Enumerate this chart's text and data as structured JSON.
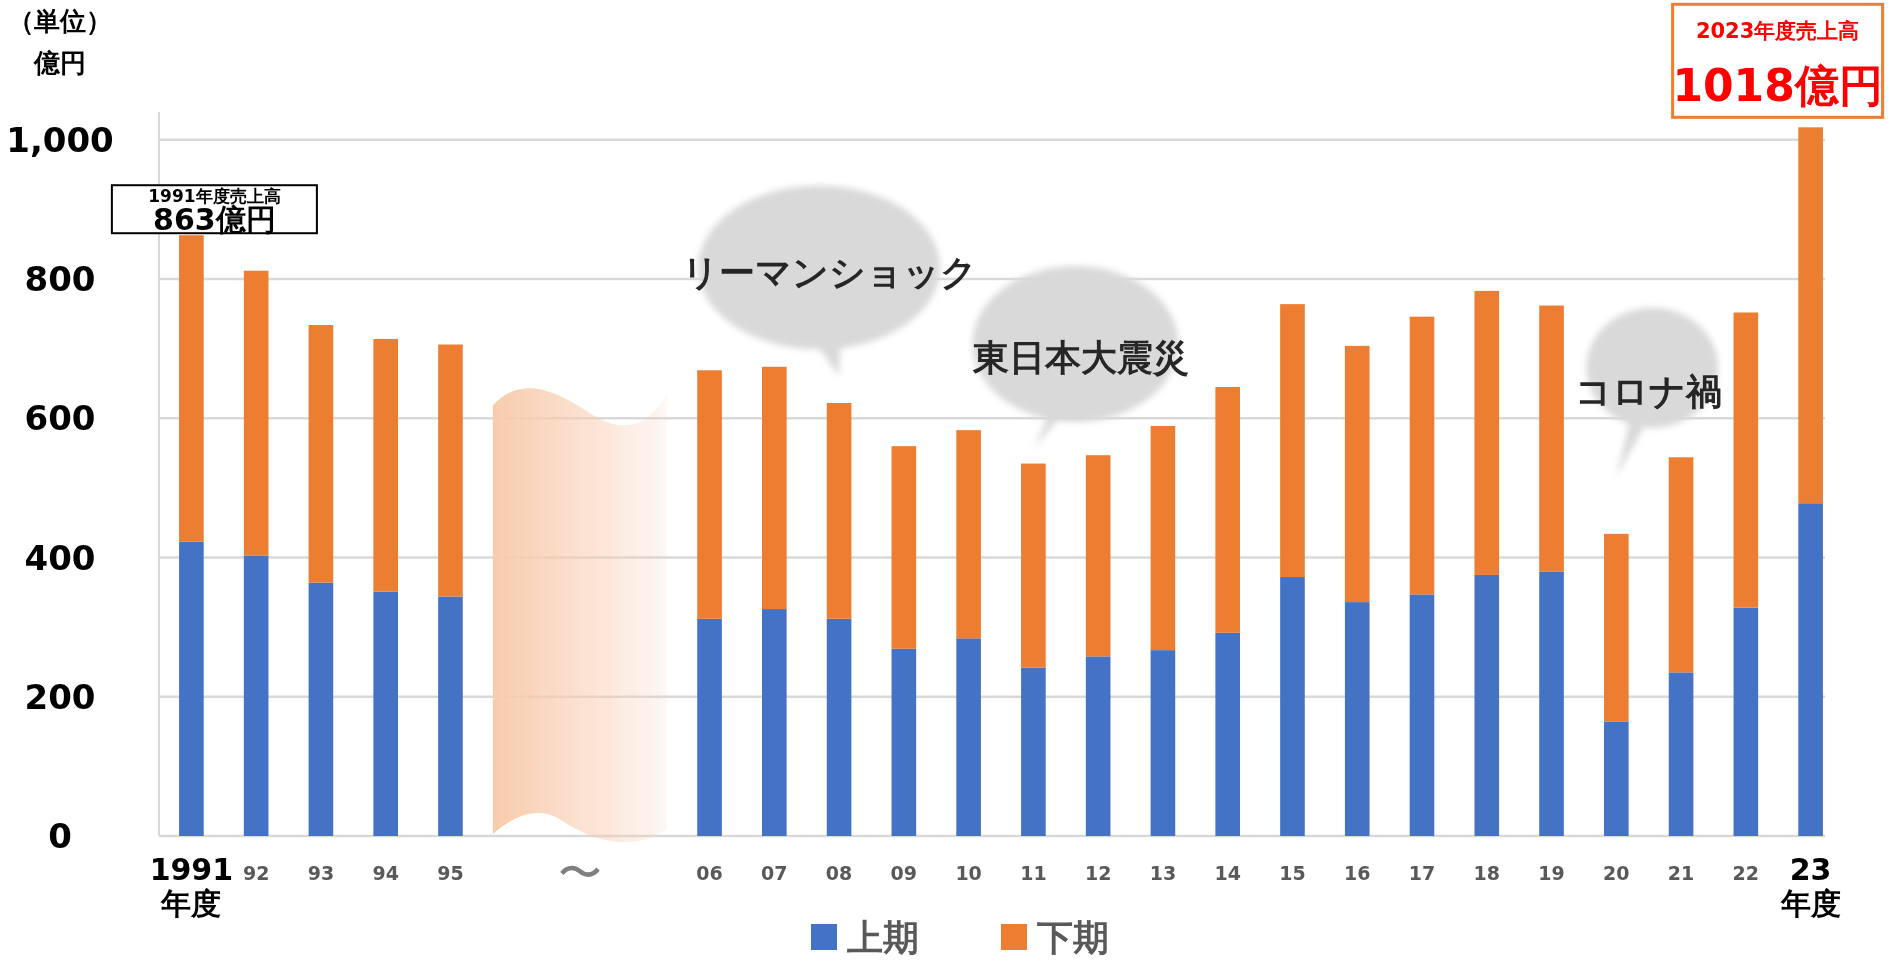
{
  "chart_data": {
    "type": "bar",
    "stacked": true,
    "ylabel": "億円",
    "categories": [
      "1991\n年度",
      "92",
      "93",
      "94",
      "95",
      null,
      "〜",
      null,
      "06",
      "07",
      "08",
      "09",
      "10",
      "11",
      "12",
      "13",
      "14",
      "15",
      "16",
      "17",
      "18",
      "19",
      "20",
      "21",
      "22",
      "23\n年度"
    ],
    "series": [
      {
        "name": "上期",
        "color": "#4472c4",
        "values": [
          423,
          403,
          364,
          351,
          344,
          null,
          null,
          null,
          312,
          326,
          312,
          269,
          284,
          242,
          258,
          267,
          292,
          372,
          336,
          347,
          375,
          380,
          164,
          235,
          328,
          478
        ]
      },
      {
        "name": "下期",
        "color": "#ed7d31",
        "values": [
          440,
          409,
          370,
          363,
          362,
          null,
          null,
          null,
          357,
          348,
          310,
          291,
          299,
          293,
          289,
          322,
          353,
          392,
          368,
          399,
          408,
          382,
          270,
          309,
          424,
          540
        ]
      }
    ],
    "ylim": [
      0,
      1040
    ],
    "yticks": [
      0,
      200,
      400,
      600,
      800,
      {
        "value": 1000,
        "label": "1,000"
      }
    ],
    "grid": "y",
    "legend": "bottom",
    "annotations": [
      {
        "text": "1991年度売上高\n863億円",
        "x": "1991\n年度",
        "y": 863
      },
      {
        "text": "2023年度売上高\n1018億円",
        "x": "23\n年度",
        "y": 1018
      },
      "リーマンショック",
      "東日本大震災",
      "コロナ禍",
      "（単位）"
    ]
  }
}
